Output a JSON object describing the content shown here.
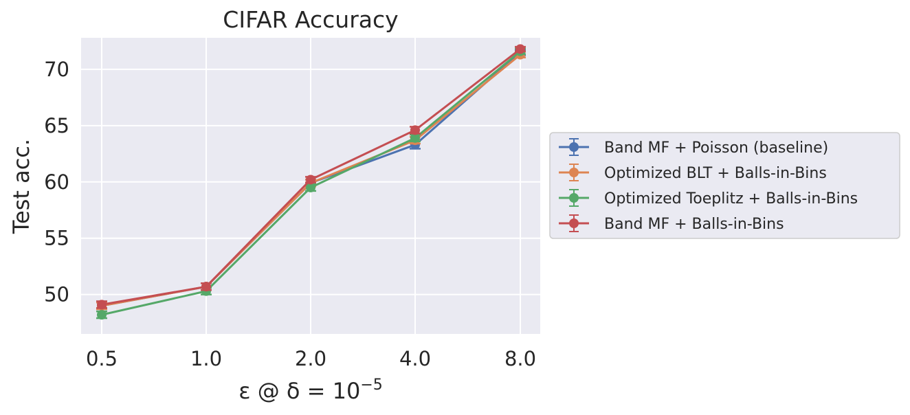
{
  "chart_data": {
    "type": "line",
    "title": "CIFAR Accuracy",
    "xlabel": "ε @ δ = 10",
    "xlabel_superscript": "−5",
    "ylabel": "Test acc.",
    "categories": [
      "0.5",
      "1.0",
      "2.0",
      "4.0",
      "8.0"
    ],
    "yticks": [
      50,
      55,
      60,
      65,
      70
    ],
    "ylim": [
      46.5,
      72.8
    ],
    "grid": true,
    "legend_position": "right",
    "series": [
      {
        "name": "Band MF + Poisson (baseline)",
        "color": "#4c72b0",
        "values": [
          49.0,
          50.7,
          59.9,
          63.3,
          71.5
        ],
        "errors": [
          0.3,
          0.3,
          0.3,
          0.35,
          0.25
        ]
      },
      {
        "name": "Optimized BLT + Balls-in-Bins",
        "color": "#dd8452",
        "values": [
          49.0,
          50.7,
          59.9,
          63.7,
          71.3
        ],
        "errors": [
          0.3,
          0.3,
          0.3,
          0.3,
          0.25
        ]
      },
      {
        "name": "Optimized Toeplitz + Balls-in-Bins",
        "color": "#55a868",
        "values": [
          48.2,
          50.3,
          59.5,
          63.9,
          71.6
        ],
        "errors": [
          0.3,
          0.3,
          0.3,
          0.3,
          0.25
        ]
      },
      {
        "name": "Band MF + Balls-in-Bins",
        "color": "#c44e52",
        "values": [
          49.1,
          50.7,
          60.2,
          64.6,
          71.8
        ],
        "errors": [
          0.3,
          0.3,
          0.25,
          0.3,
          0.2
        ]
      }
    ]
  }
}
